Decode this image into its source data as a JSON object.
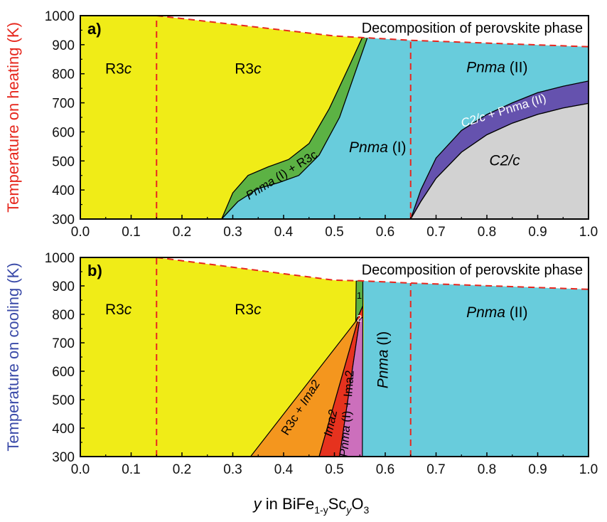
{
  "figure": {
    "xlabel": {
      "y": "y",
      "rest1": " in BiFe",
      "sub1": "1-y",
      "sc": "Sc",
      "sub2": "y",
      "o": "O",
      "sub3": "3"
    }
  },
  "colors": {
    "yellow": "#f0ec17",
    "cyan": "#68ccdc",
    "green": "#5cb244",
    "purple": "#6552ae",
    "gray": "#d2d2d2",
    "orange": "#f4961e",
    "red": "#e6321e",
    "pink": "#cc6fbc",
    "dashed": "#e8261e",
    "heating_label": "#e6281e",
    "cooling_label": "#3a4aa8"
  },
  "chart_data": [
    {
      "type": "area",
      "panel": "a)",
      "ylabel": "Temperature on heating (K)",
      "xlim": [
        0.0,
        1.0
      ],
      "ylim": [
        300,
        1000
      ],
      "xticks": [
        "0.0",
        "0.1",
        "0.2",
        "0.3",
        "0.4",
        "0.5",
        "0.6",
        "0.7",
        "0.8",
        "0.9",
        "1.0"
      ],
      "yticks": [
        "300",
        "400",
        "500",
        "600",
        "700",
        "800",
        "900",
        "1000"
      ],
      "note": "Decomposition of perovskite phase",
      "decomposition_line": [
        [
          0.15,
          1000
        ],
        [
          0.5,
          930
        ],
        [
          0.55,
          925
        ],
        [
          0.65,
          915
        ],
        [
          1.0,
          893
        ]
      ],
      "vlines": [
        0.15,
        0.65
      ],
      "boundaries": {
        "r3c_left": [
          [
            0.278,
            300
          ],
          [
            0.3,
            390
          ],
          [
            0.33,
            450
          ],
          [
            0.37,
            480
          ],
          [
            0.41,
            505
          ],
          [
            0.45,
            560
          ],
          [
            0.49,
            680
          ],
          [
            0.53,
            830
          ],
          [
            0.555,
            925
          ]
        ],
        "pnma1_left": [
          [
            0.278,
            300
          ],
          [
            0.31,
            360
          ],
          [
            0.35,
            405
          ],
          [
            0.39,
            425
          ],
          [
            0.43,
            450
          ],
          [
            0.47,
            520
          ],
          [
            0.51,
            650
          ],
          [
            0.54,
            800
          ],
          [
            0.565,
            925
          ]
        ],
        "c2c_upper": [
          [
            0.65,
            300
          ],
          [
            0.67,
            400
          ],
          [
            0.7,
            510
          ],
          [
            0.75,
            605
          ],
          [
            0.8,
            660
          ],
          [
            0.85,
            700
          ],
          [
            0.9,
            735
          ],
          [
            0.95,
            757
          ],
          [
            1.0,
            775
          ]
        ],
        "c2c_lower": [
          [
            0.65,
            300
          ],
          [
            0.67,
            360
          ],
          [
            0.7,
            440
          ],
          [
            0.75,
            530
          ],
          [
            0.8,
            590
          ],
          [
            0.85,
            630
          ],
          [
            0.9,
            660
          ],
          [
            0.95,
            682
          ],
          [
            1.0,
            698
          ]
        ]
      },
      "regions": [
        {
          "label": "R3",
          "italic": "c",
          "x": 0.075,
          "y": 800
        },
        {
          "label": "R3",
          "italic": "c",
          "x": 0.33,
          "y": 800
        },
        {
          "label": "",
          "italic": "Pnma",
          "suffix": " (II)",
          "x": 0.82,
          "y": 805
        },
        {
          "label": "",
          "italic": "Pnma",
          "suffix": " (I)",
          "x": 0.585,
          "y": 530
        },
        {
          "label": "",
          "italic": "C2/c",
          "x": 0.835,
          "y": 485
        },
        {
          "label": "",
          "italic": "Pnma",
          "suffix": " (I) + R3c",
          "x": 0.4,
          "y": 440,
          "rotate": -32,
          "small": true
        },
        {
          "label": "",
          "italic": "C2/c",
          "suffix": " + Pnma (II)",
          "x": 0.835,
          "y": 660,
          "rotate": -17,
          "small": true,
          "color": "#ffffff"
        }
      ]
    },
    {
      "type": "area",
      "panel": "b)",
      "ylabel": "Temperature on cooling (K)",
      "xlim": [
        0.0,
        1.0
      ],
      "ylim": [
        300,
        1000
      ],
      "xticks": [
        "0.0",
        "0.1",
        "0.2",
        "0.3",
        "0.4",
        "0.5",
        "0.6",
        "0.7",
        "0.8",
        "0.9",
        "1.0"
      ],
      "yticks": [
        "300",
        "400",
        "500",
        "600",
        "700",
        "800",
        "900",
        "1000"
      ],
      "note": "Decomposition of perovskite phase",
      "decomposition_line": [
        [
          0.15,
          1000
        ],
        [
          0.5,
          920
        ],
        [
          0.55,
          918
        ],
        [
          0.65,
          910
        ],
        [
          1.0,
          888
        ]
      ],
      "vlines": [
        0.15,
        0.65
      ],
      "boundaries": {
        "g1_x_top": 0.543,
        "g1_x_top_right": 0.555,
        "g1_bottom": 815,
        "orange_left": [
          [
            0.335,
            300
          ],
          [
            0.542,
            775
          ]
        ],
        "red_left": [
          [
            0.47,
            300
          ],
          [
            0.548,
            790
          ]
        ],
        "pink_left": [
          [
            0.51,
            300
          ],
          [
            0.552,
            810
          ]
        ],
        "pnma_left": [
          [
            0.555,
            300
          ],
          [
            0.558,
            830
          ]
        ]
      },
      "regions": [
        {
          "label": "R3",
          "italic": "c",
          "x": 0.075,
          "y": 800
        },
        {
          "label": "R3",
          "italic": "c",
          "x": 0.33,
          "y": 800
        },
        {
          "label": "",
          "italic": "Pnma",
          "suffix": " (II)",
          "x": 0.82,
          "y": 790
        },
        {
          "label": "",
          "italic": "Pnma",
          "suffix": " (I)",
          "x": 0.605,
          "y": 640,
          "rotate": -90
        },
        {
          "label": "R3c + ",
          "italic": "Ima2",
          "x": 0.44,
          "y": 465,
          "rotate": -58,
          "small": true
        },
        {
          "label": "",
          "italic": "Ima2",
          "x": 0.5,
          "y": 415,
          "rotate": -78,
          "small": true
        },
        {
          "label": "",
          "italic": "Pnma",
          "suffix": " (I) + Ima2",
          "x": 0.532,
          "y": 450,
          "rotate": -86,
          "small": true
        },
        {
          "label": "1",
          "x": 0.549,
          "y": 855,
          "tiny": true
        },
        {
          "label": "2",
          "x": 0.549,
          "y": 775,
          "tiny": true,
          "color": "#ffffff"
        }
      ]
    }
  ]
}
